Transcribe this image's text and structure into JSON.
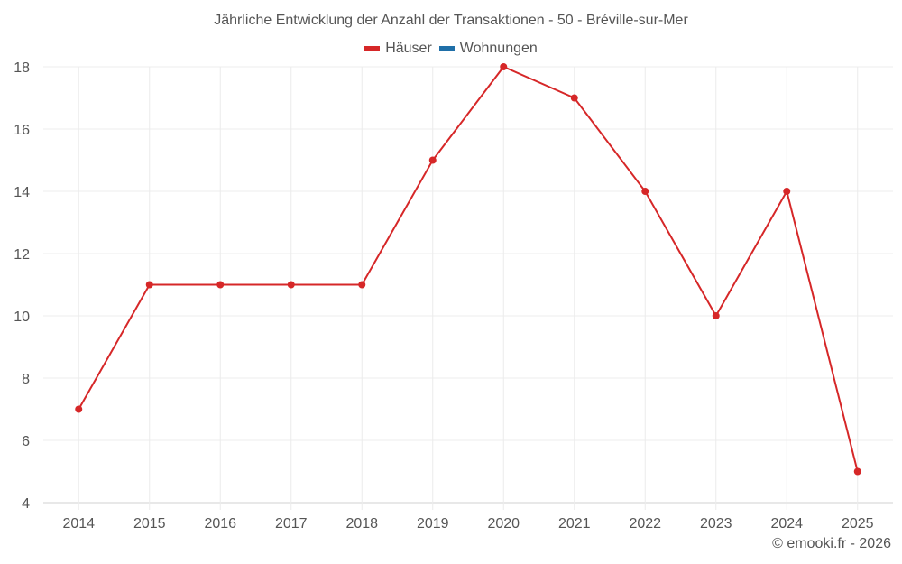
{
  "header": {
    "title": "Jährliche Entwicklung der Anzahl der Transaktionen - 50 - Bréville-sur-Mer"
  },
  "legend": [
    {
      "label": "Häuser",
      "color": "#d62728"
    },
    {
      "label": "Wohnungen",
      "color": "#1f6fa8"
    }
  ],
  "footer": {
    "credit": "© emooki.fr - 2026"
  },
  "chart_data": {
    "type": "line",
    "title": "Jährliche Entwicklung der Anzahl der Transaktionen - 50 - Bréville-sur-Mer",
    "xlabel": "",
    "ylabel": "",
    "categories": [
      "2014",
      "2015",
      "2016",
      "2017",
      "2018",
      "2019",
      "2020",
      "2021",
      "2022",
      "2023",
      "2024",
      "2025"
    ],
    "series": [
      {
        "name": "Häuser",
        "color": "#d62728",
        "values": [
          7,
          11,
          11,
          11,
          11,
          15,
          18,
          17,
          14,
          10,
          14,
          5
        ]
      },
      {
        "name": "Wohnungen",
        "color": "#1f6fa8",
        "values": []
      }
    ],
    "ylim": [
      4,
      18
    ],
    "yticks": [
      4,
      6,
      8,
      10,
      12,
      14,
      16,
      18
    ],
    "grid": true,
    "legend_position": "top"
  }
}
